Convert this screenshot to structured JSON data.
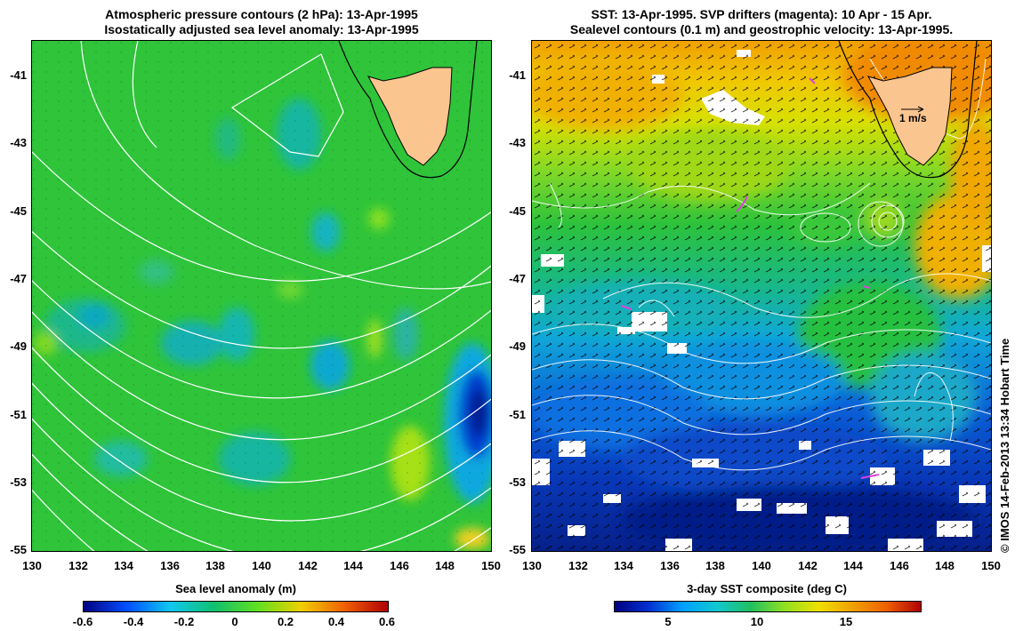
{
  "left_panel": {
    "title_line1": "Atmospheric pressure contours (2 hPa): 13-Apr-1995",
    "title_line2": "Isostatically adjusted sea level anomaly: 13-Apr-1995",
    "colorbar_label": "Sea level anomaly (m)",
    "colorbar_ticks": [
      "-0.6",
      "-0.4",
      "-0.2",
      "0",
      "0.2",
      "0.4",
      "0.6"
    ],
    "colorbar_stops": [
      "#00007f",
      "#0050ff",
      "#10c8f0",
      "#10c070",
      "#60e020",
      "#f0d000",
      "#f06000",
      "#b00000"
    ]
  },
  "right_panel": {
    "title_line1": "SST: 13-Apr-1995. SVP drifters (magenta): 10 Apr - 15 Apr.",
    "title_line2": "Sealevel contours (0.1 m) and geostrophic velocity: 13-Apr-1995.",
    "colorbar_label": "3-day SST composite (deg C)",
    "colorbar_ticks": [
      "5",
      "10",
      "15"
    ],
    "velocity_scale_label": "1 m/s",
    "colorbar_stops": [
      "#00007f",
      "#0030d0",
      "#00a0ff",
      "#10c8d0",
      "#20c060",
      "#90e020",
      "#f0e000",
      "#f0a000",
      "#f06000",
      "#b00000"
    ]
  },
  "axes": {
    "x_ticks": [
      "130",
      "132",
      "134",
      "136",
      "138",
      "140",
      "142",
      "144",
      "146",
      "148",
      "150"
    ],
    "y_ticks": [
      "-41",
      "-43",
      "-45",
      "-47",
      "-49",
      "-51",
      "-53",
      "-55"
    ]
  },
  "credit": "© IMOS 14-Feb-2013 13:34 Hobart Time",
  "colors": {
    "land": "#fbc590",
    "ocean_green": "#33cc33",
    "drifter": "#e040e0"
  }
}
